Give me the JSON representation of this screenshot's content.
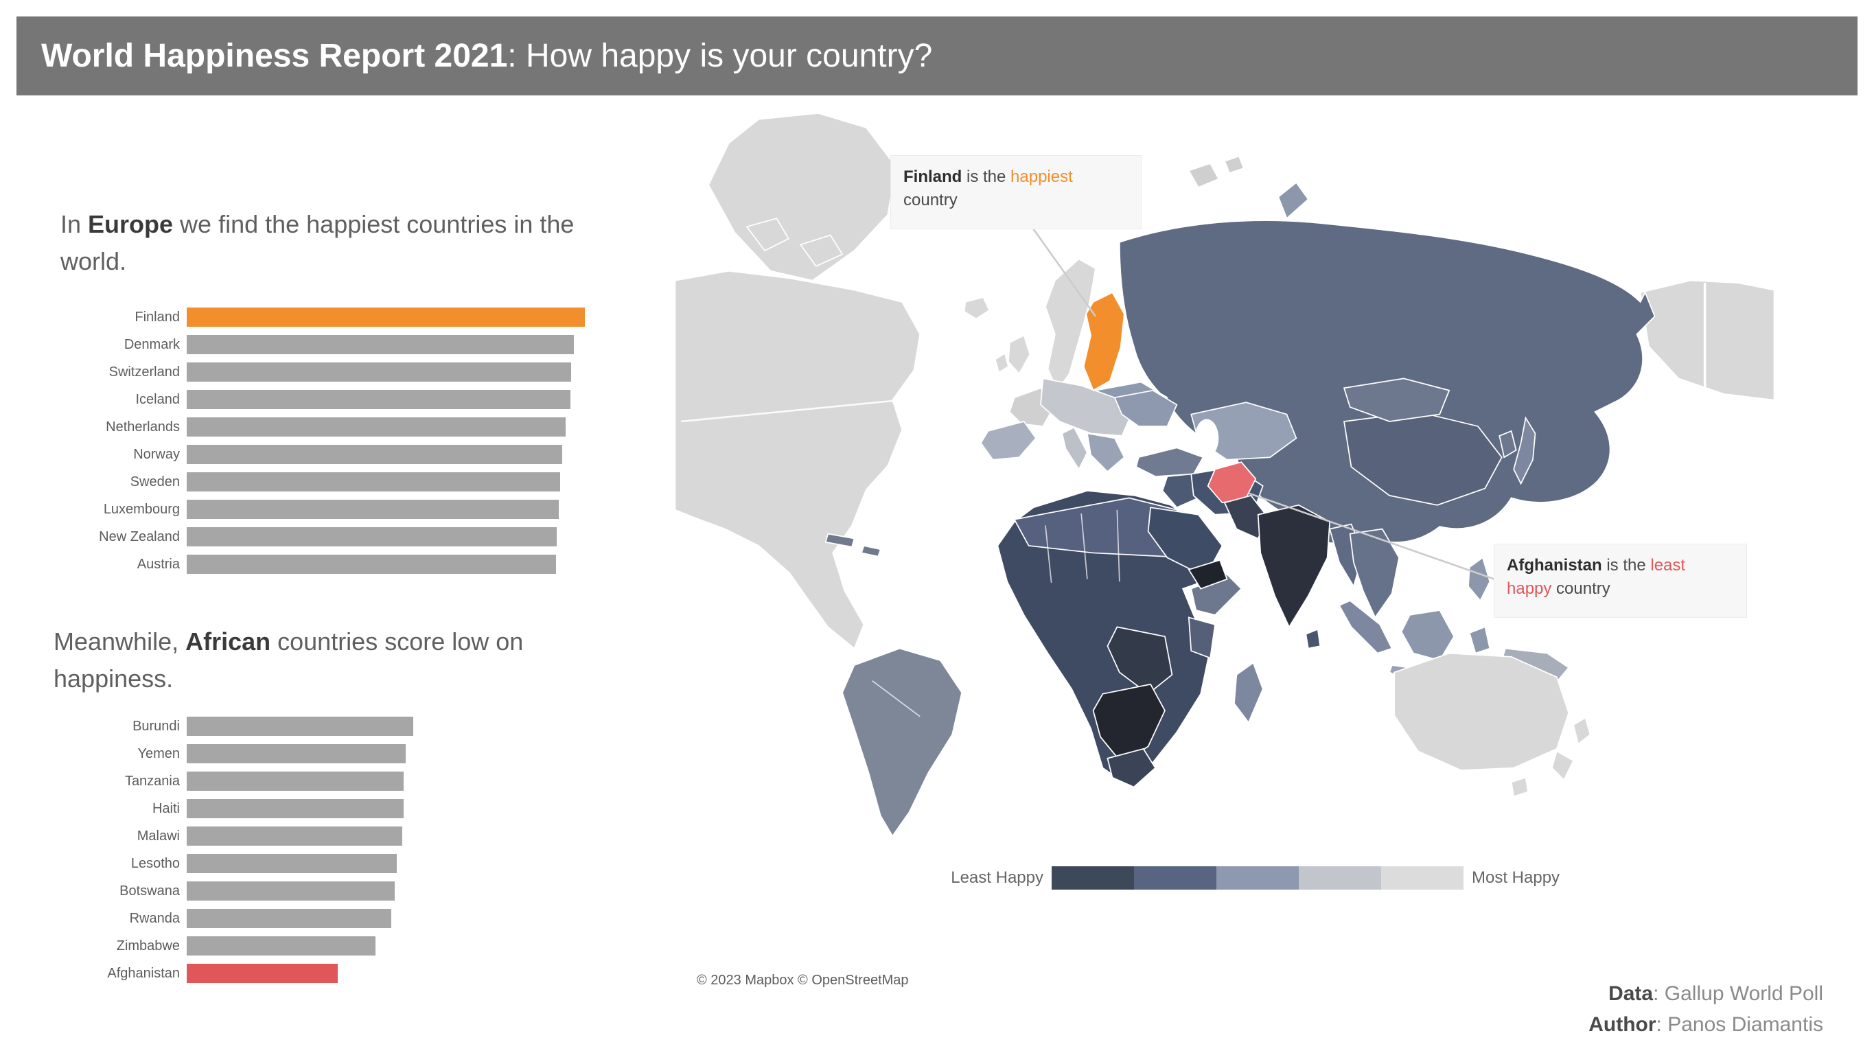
{
  "header": {
    "title_bold": "World Happiness Report 2021",
    "title_rest": ": How happy is your country?"
  },
  "intro_europe": {
    "pre": "In ",
    "bold": "Europe",
    "post": " we find the happiest countries in the world."
  },
  "intro_africa": {
    "pre": "Meanwhile, ",
    "bold": "African",
    "post": " countries score low on happiness."
  },
  "chart_data": [
    {
      "type": "bar",
      "orientation": "horizontal",
      "categories": [
        "Finland",
        "Denmark",
        "Switzerland",
        "Iceland",
        "Netherlands",
        "Norway",
        "Sweden",
        "Luxembourg",
        "New Zealand",
        "Austria"
      ],
      "values": [
        7.84,
        7.62,
        7.57,
        7.55,
        7.46,
        7.39,
        7.36,
        7.32,
        7.28,
        7.27
      ],
      "xlim": [
        0,
        7.84
      ],
      "grid": false,
      "highlight": {
        "category": "Finland",
        "color": "#f28e2b"
      },
      "default_color": "#a6a6a6"
    },
    {
      "type": "bar",
      "orientation": "horizontal",
      "categories": [
        "Burundi",
        "Yemen",
        "Tanzania",
        "Haiti",
        "Malawi",
        "Lesotho",
        "Botswana",
        "Rwanda",
        "Zimbabwe",
        "Afghanistan"
      ],
      "values": [
        3.78,
        3.66,
        3.62,
        3.62,
        3.6,
        3.51,
        3.47,
        3.42,
        3.15,
        2.52
      ],
      "xlim": [
        0,
        6.65
      ],
      "grid": false,
      "highlight": {
        "category": "Afghanistan",
        "color": "#e15759"
      },
      "default_color": "#a6a6a6"
    }
  ],
  "map": {
    "annotation_finland": {
      "country": "Finland",
      "mid": " is the ",
      "highlight": "happiest",
      "post": " country",
      "highlight_color": "#f28e2b"
    },
    "annotation_afghanistan": {
      "country": "Afghanistan",
      "mid": " is the ",
      "highlight": "least happy",
      "post": " country",
      "highlight_color": "#e15759"
    },
    "legend": {
      "left_label": "Least Happy",
      "right_label": "Most Happy",
      "colors": [
        "#3d4859",
        "#586582",
        "#8e99af",
        "#c2c5cb",
        "#dcdcdc"
      ]
    },
    "attribution": "© 2023 Mapbox © OpenStreetMap"
  },
  "footer": {
    "data_label": "Data",
    "data_rest": ": Gallup World Poll",
    "author_label": "Author",
    "author_rest": ": Panos Diamantis"
  },
  "colors": {
    "header_bg": "#767676",
    "bar_gray": "#a6a6a6",
    "orange": "#f28e2b",
    "red": "#e15759"
  }
}
